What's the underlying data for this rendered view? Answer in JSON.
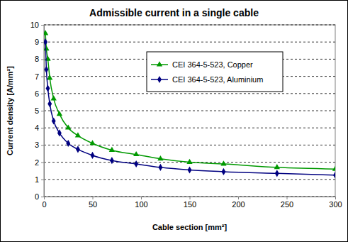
{
  "chart_data": {
    "type": "line",
    "title": "Admissible current in a single cable",
    "x_label": "Cable section [mm²]",
    "y_label": "Current density [A/mm²]",
    "x": [
      1.5,
      2.5,
      4,
      6,
      10,
      16,
      25,
      35,
      50,
      70,
      95,
      120,
      150,
      185,
      240,
      300
    ],
    "series": [
      {
        "name": "CEI 364-5-523, Copper",
        "color": "#009900",
        "marker": "triangle",
        "values": [
          9.5,
          8.6,
          8.0,
          6.9,
          5.7,
          4.8,
          4.0,
          3.55,
          3.1,
          2.7,
          2.45,
          2.2,
          2.0,
          1.9,
          1.7,
          1.6
        ]
      },
      {
        "name": "CEI 364-5-523, Aluminium",
        "color": "#000080",
        "marker": "diamond",
        "values": [
          9.0,
          7.4,
          6.3,
          5.4,
          4.4,
          3.7,
          3.1,
          2.75,
          2.4,
          2.1,
          1.9,
          1.7,
          1.55,
          1.45,
          1.35,
          1.25
        ]
      }
    ],
    "xlim": [
      0,
      300
    ],
    "xticks": [
      0,
      50,
      100,
      150,
      200,
      250,
      300
    ],
    "ylim": [
      0,
      10
    ],
    "yticks": [
      0,
      1,
      2,
      3,
      4,
      5,
      6,
      7,
      8,
      9,
      10
    ],
    "grid": true,
    "legend": "upper right"
  }
}
